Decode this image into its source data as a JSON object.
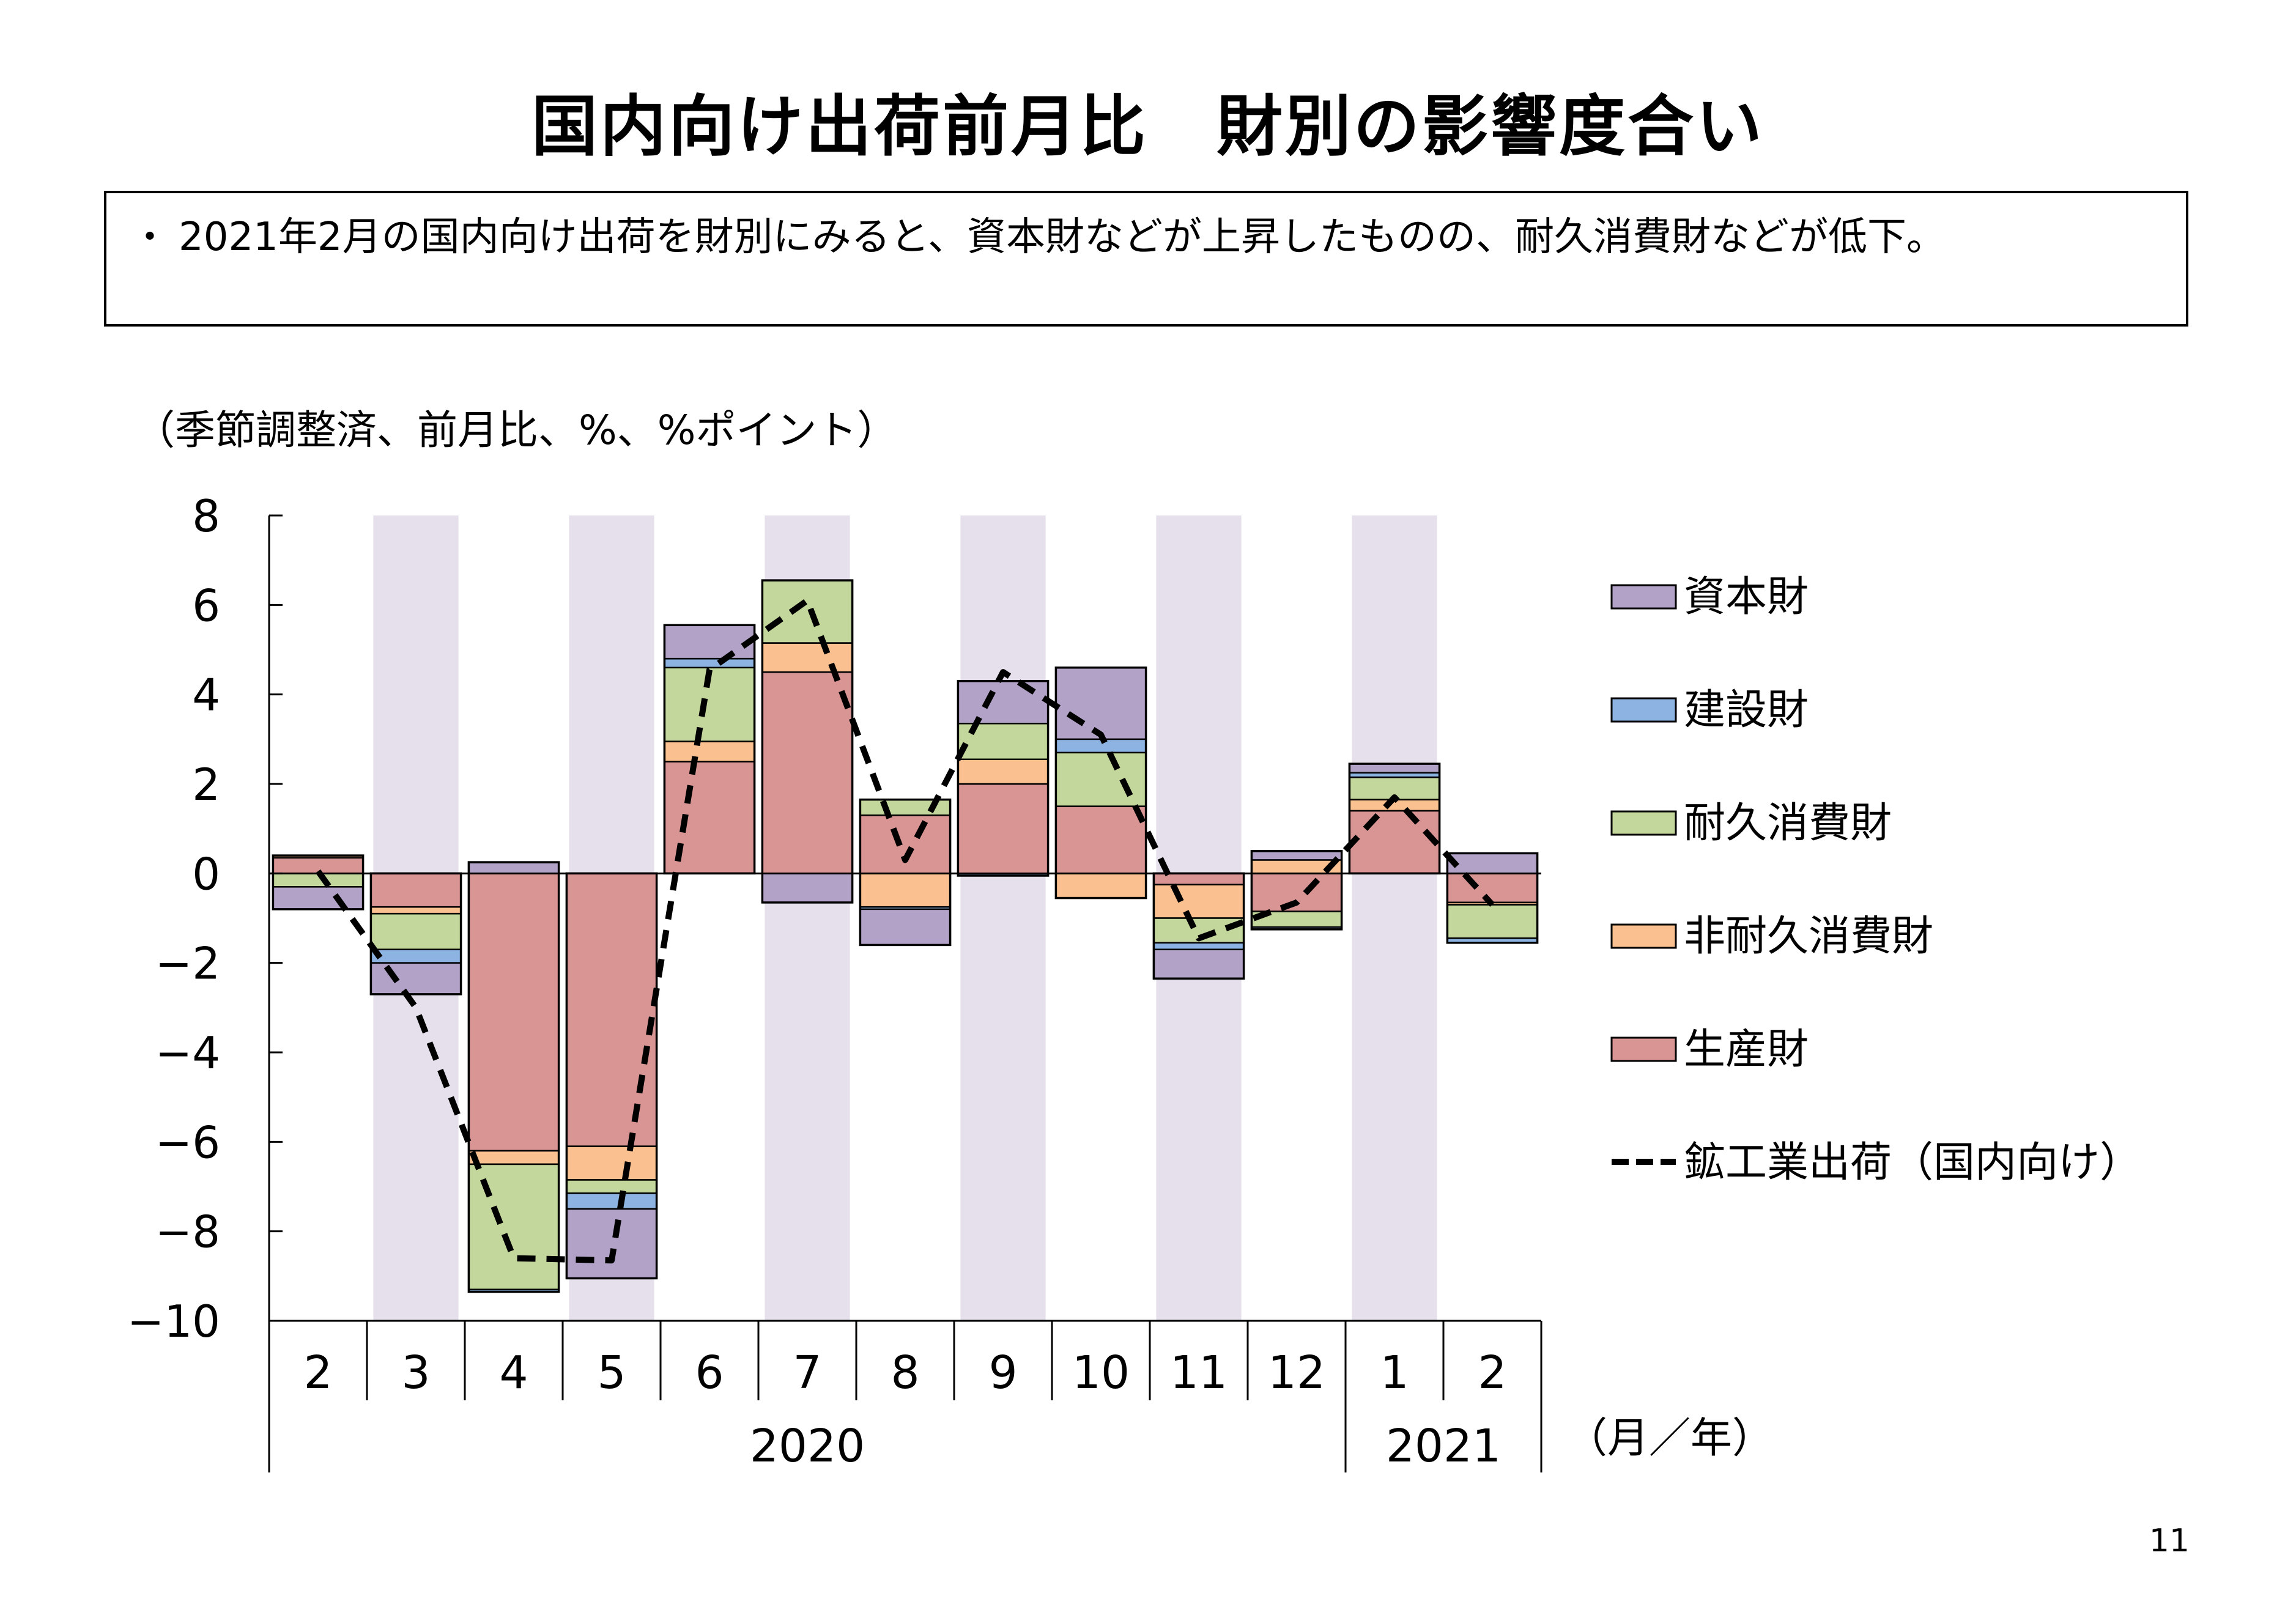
{
  "title": "国内向け出荷前月比　財別の影響度合い",
  "summary": {
    "bullet": "・",
    "text": "2021年2月の国内向け出荷を財別にみると、資本財などが上昇したものの、耐久消費財などが低下。"
  },
  "unit_note": "（季節調整済、前月比、%、%ポイント）",
  "page_number": "11",
  "chart_data": {
    "type": "bar",
    "stacked": true,
    "categories": [
      "2",
      "3",
      "4",
      "5",
      "6",
      "7",
      "8",
      "9",
      "10",
      "11",
      "12",
      "1",
      "2"
    ],
    "year_groups": [
      {
        "label": "2020",
        "start": 0,
        "end": 10
      },
      {
        "label": "2021",
        "start": 11,
        "end": 12
      }
    ],
    "xlabel": "（月／年）",
    "ylim": [
      -10,
      8
    ],
    "yticks": [
      8,
      6,
      4,
      2,
      0,
      -2,
      -4,
      -6,
      -8,
      -10
    ],
    "ytick_labels": [
      "8",
      "6",
      "4",
      "2",
      "0",
      "−2",
      "−4",
      "−6",
      "−8",
      "−10"
    ],
    "shaded_categories": [
      1,
      3,
      5,
      7,
      9,
      11
    ],
    "shade_color": "#e5e0ec",
    "series": [
      {
        "name": "生産財",
        "color": "#d99594",
        "values": [
          0.35,
          -0.75,
          -6.2,
          -6.1,
          2.5,
          4.5,
          1.3,
          2.0,
          1.5,
          -0.25,
          -0.85,
          1.4,
          -0.65
        ]
      },
      {
        "name": "非耐久消費財",
        "color": "#fac090",
        "values": [
          0.05,
          -0.15,
          -0.3,
          -0.75,
          0.45,
          0.65,
          -0.75,
          0.55,
          -0.55,
          -0.75,
          0.3,
          0.25,
          -0.05
        ]
      },
      {
        "name": "耐久消費財",
        "color": "#c3d69b",
        "values": [
          -0.3,
          -0.8,
          -2.8,
          -0.3,
          1.65,
          1.4,
          0.35,
          0.8,
          1.2,
          -0.55,
          -0.35,
          0.5,
          -0.75
        ]
      },
      {
        "name": "建設財",
        "color": "#8db3e2",
        "values": [
          0.0,
          -0.3,
          -0.05,
          -0.35,
          0.2,
          0.0,
          -0.05,
          -0.05,
          0.3,
          -0.15,
          -0.05,
          0.1,
          -0.1
        ]
      },
      {
        "name": "資本財",
        "color": "#b2a2c7",
        "values": [
          -0.5,
          -0.7,
          0.25,
          -1.55,
          0.75,
          -0.65,
          -0.8,
          0.95,
          1.6,
          -0.65,
          0.2,
          0.2,
          0.45
        ]
      }
    ],
    "line": {
      "name": "鉱工業出荷（国内向け）",
      "style": "dashed",
      "color": "#000000",
      "values": [
        0.05,
        -3.0,
        -8.6,
        -8.65,
        4.55,
        6.1,
        0.3,
        4.5,
        3.1,
        -1.45,
        -0.65,
        1.7,
        -0.7
      ]
    },
    "legend": {
      "placement": "right",
      "entries": [
        {
          "label": "資本財",
          "color": "#b2a2c7",
          "kind": "box"
        },
        {
          "label": "建設財",
          "color": "#8db3e2",
          "kind": "box"
        },
        {
          "label": "耐久消費財",
          "color": "#c3d69b",
          "kind": "box"
        },
        {
          "label": "非耐久消費財",
          "color": "#fac090",
          "kind": "box"
        },
        {
          "label": "生産財",
          "color": "#d99594",
          "kind": "box"
        },
        {
          "label": "鉱工業出荷（国内向け）",
          "color": "#000000",
          "kind": "dashed-line"
        }
      ]
    }
  }
}
